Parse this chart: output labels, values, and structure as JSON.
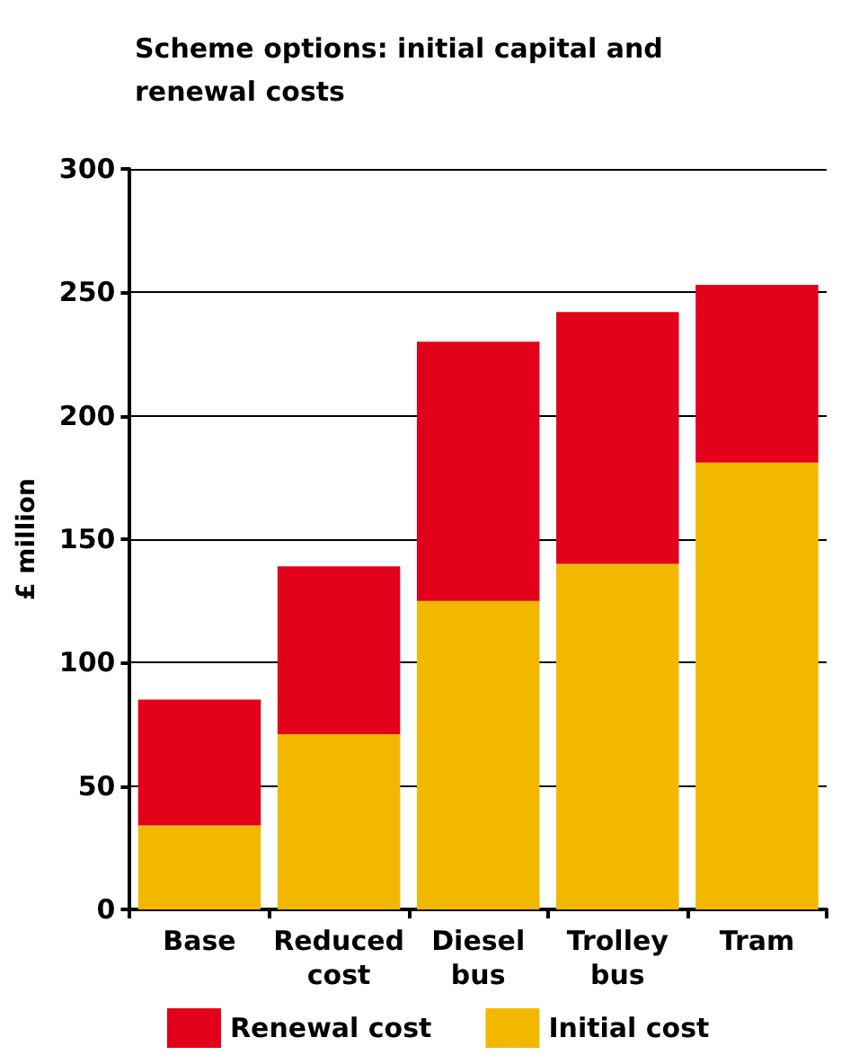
{
  "chart_data": {
    "type": "bar",
    "title": "Scheme options: initial capital and renewal costs",
    "ylabel": "£ million",
    "categories": [
      "Base",
      "Reduced cost",
      "Diesel bus",
      "Trolley bus",
      "Tram"
    ],
    "series": [
      {
        "name": "Initial cost",
        "color": "#f2b800",
        "values": [
          34,
          71,
          125,
          140,
          181
        ]
      },
      {
        "name": "Renewal cost",
        "color": "#e2001a",
        "values": [
          51,
          68,
          105,
          102,
          72
        ]
      }
    ],
    "stacked": true,
    "ylim": [
      0,
      300
    ],
    "yticks": [
      0,
      50,
      100,
      150,
      200,
      250,
      300
    ],
    "grid": "y",
    "legend": "bottom"
  }
}
